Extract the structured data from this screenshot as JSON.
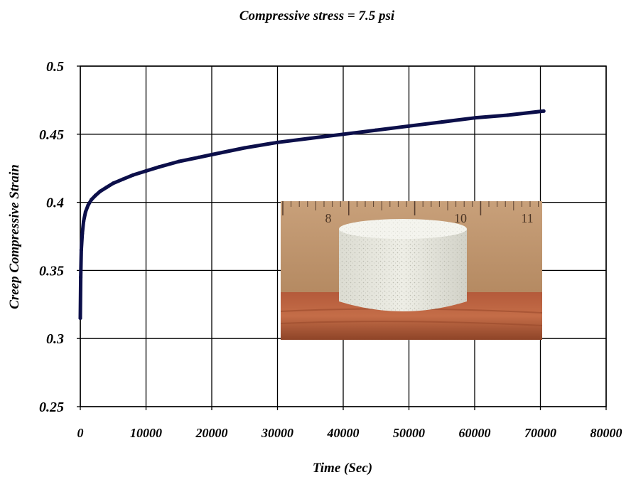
{
  "chart_data": {
    "type": "line",
    "title": "Compressive stress = 7.5 psi",
    "xlabel": "Time (Sec)",
    "ylabel": "Creep Compressive Strain",
    "xlim": [
      0,
      80000
    ],
    "ylim": [
      0.25,
      0.5
    ],
    "x_ticks": [
      "0",
      "10000",
      "20000",
      "30000",
      "40000",
      "50000",
      "60000",
      "70000",
      "80000"
    ],
    "y_ticks": [
      "0.5",
      "0.45",
      "0.4",
      "0.35",
      "0.3",
      "0.25"
    ],
    "x_tick_values": [
      0,
      10000,
      20000,
      30000,
      40000,
      50000,
      60000,
      70000,
      80000
    ],
    "y_tick_values": [
      0.5,
      0.45,
      0.4,
      0.35,
      0.3,
      0.25
    ],
    "grid": true,
    "legend": "none",
    "series": [
      {
        "color": "#0c0f4a",
        "x": [
          0,
          60,
          150,
          300,
          500,
          800,
          1200,
          1700,
          2300,
          3000,
          4000,
          5000,
          6500,
          8000,
          10000,
          12000,
          15000,
          18000,
          20000,
          25000,
          30000,
          35000,
          40000,
          45000,
          50000,
          55000,
          60000,
          65000,
          70500
        ],
        "y": [
          0.315,
          0.345,
          0.365,
          0.377,
          0.386,
          0.393,
          0.398,
          0.402,
          0.405,
          0.408,
          0.411,
          0.414,
          0.417,
          0.42,
          0.423,
          0.426,
          0.43,
          0.433,
          0.435,
          0.44,
          0.444,
          0.447,
          0.45,
          0.453,
          0.456,
          0.459,
          0.462,
          0.464,
          0.467
        ]
      }
    ],
    "inset_photo": {
      "subject": "white foam cylinder specimen in front of a wooden ruler",
      "ruler_numbers": [
        "8",
        "10",
        "11"
      ]
    }
  }
}
